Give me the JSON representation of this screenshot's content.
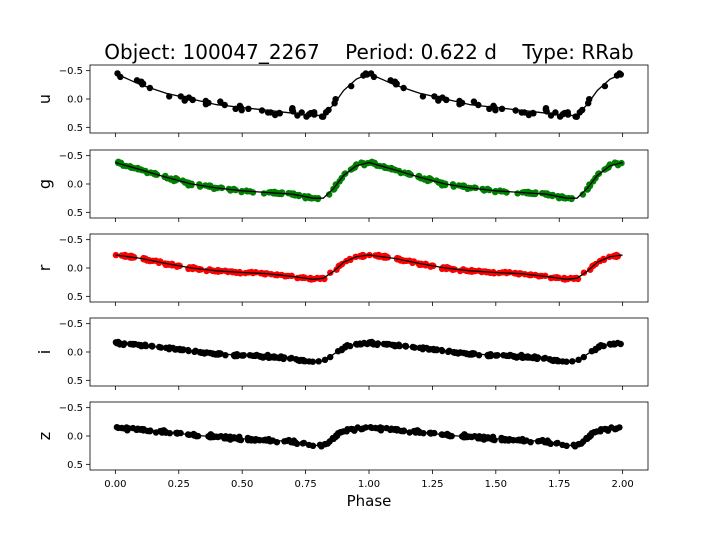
{
  "chart_data": {
    "type": "scatter",
    "title": "Object: 100047_2267    Period: 0.622 d    Type: RRab",
    "xlabel": "Phase",
    "xlim": [
      -0.1,
      2.1
    ],
    "xticks": [
      "0.00",
      "0.25",
      "0.50",
      "0.75",
      "1.00",
      "1.25",
      "1.50",
      "1.75",
      "2.00"
    ],
    "x_tick_values": [
      0,
      0.25,
      0.5,
      0.75,
      1.0,
      1.25,
      1.5,
      1.75,
      2.0
    ],
    "y_inverted": true,
    "ylim": [
      0.6,
      -0.6
    ],
    "yticks": [
      "−0.5",
      "0.0",
      "0.5"
    ],
    "y_tick_values": [
      -0.5,
      0.0,
      0.5
    ],
    "panels": [
      {
        "band": "u",
        "color": "#000000",
        "sparse": true,
        "fit_phase": [
          0.0,
          0.1,
          0.2,
          0.3,
          0.4,
          0.5,
          0.6,
          0.7,
          0.78,
          0.82,
          0.86,
          0.9,
          0.95,
          1.0
        ],
        "fit_mag": [
          -0.45,
          -0.25,
          -0.1,
          0.0,
          0.1,
          0.15,
          0.2,
          0.25,
          0.3,
          0.28,
          0.1,
          -0.15,
          -0.35,
          -0.45
        ],
        "scatter": 0.06
      },
      {
        "band": "g",
        "color": "#008000",
        "sparse": false,
        "fit_phase": [
          0.0,
          0.1,
          0.2,
          0.3,
          0.4,
          0.5,
          0.6,
          0.7,
          0.78,
          0.82,
          0.86,
          0.9,
          0.95,
          1.0
        ],
        "fit_mag": [
          -0.38,
          -0.25,
          -0.12,
          0.0,
          0.07,
          0.12,
          0.15,
          0.18,
          0.25,
          0.25,
          0.08,
          -0.15,
          -0.32,
          -0.38
        ],
        "scatter": 0.025
      },
      {
        "band": "r",
        "color": "#ff0000",
        "sparse": false,
        "fit_phase": [
          0.0,
          0.1,
          0.2,
          0.3,
          0.4,
          0.5,
          0.6,
          0.7,
          0.78,
          0.82,
          0.86,
          0.9,
          0.95,
          1.0
        ],
        "fit_mag": [
          -0.23,
          -0.17,
          -0.08,
          0.0,
          0.05,
          0.08,
          0.1,
          0.15,
          0.2,
          0.18,
          0.06,
          -0.1,
          -0.2,
          -0.23
        ],
        "scatter": 0.02
      },
      {
        "band": "i",
        "color": "#000000",
        "sparse": false,
        "fit_phase": [
          0.0,
          0.1,
          0.2,
          0.3,
          0.4,
          0.5,
          0.6,
          0.7,
          0.78,
          0.82,
          0.86,
          0.9,
          0.95,
          1.0
        ],
        "fit_mag": [
          -0.16,
          -0.12,
          -0.07,
          -0.02,
          0.03,
          0.06,
          0.08,
          0.12,
          0.18,
          0.16,
          0.04,
          -0.08,
          -0.14,
          -0.16
        ],
        "scatter": 0.02
      },
      {
        "band": "z",
        "color": "#000000",
        "sparse": false,
        "fit_phase": [
          0.0,
          0.1,
          0.2,
          0.3,
          0.4,
          0.5,
          0.6,
          0.7,
          0.78,
          0.82,
          0.86,
          0.9,
          0.95,
          1.0
        ],
        "fit_mag": [
          -0.15,
          -0.11,
          -0.07,
          -0.02,
          0.02,
          0.05,
          0.07,
          0.1,
          0.17,
          0.16,
          0.04,
          -0.08,
          -0.13,
          -0.15
        ],
        "scatter": 0.025
      }
    ]
  }
}
